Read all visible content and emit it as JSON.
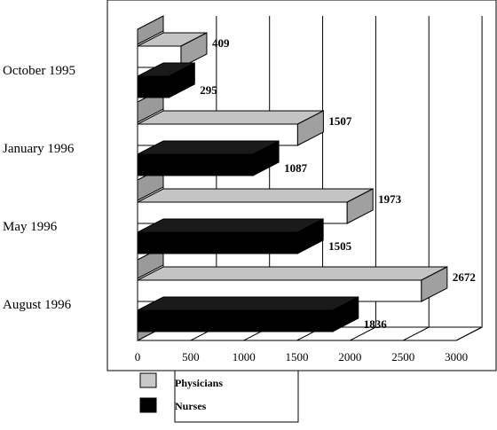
{
  "chart_data": {
    "type": "bar",
    "orientation": "horizontal",
    "style": "3d",
    "categories": [
      "October 1995",
      "January 1996",
      "May 1996",
      "August 1996"
    ],
    "series": [
      {
        "name": "Physicians",
        "values": [
          409,
          1507,
          1973,
          2672
        ],
        "color": "#ffffff",
        "side_color": "#a0a0a0",
        "top_color": "#c4c4c4"
      },
      {
        "name": "Nurses",
        "values": [
          295,
          1087,
          1505,
          1836
        ],
        "color": "#000000",
        "side_color": "#000000",
        "top_color": "#1a1a1a"
      }
    ],
    "value_labels": [
      [
        "409",
        "1507",
        "1973",
        "2672"
      ],
      [
        "295",
        "1087",
        "1505",
        "1836"
      ]
    ],
    "x_ticks": [
      "0",
      "500",
      "1000",
      "1500",
      "2000",
      "2500",
      "3000"
    ],
    "xlim": [
      0,
      3000
    ],
    "grid": true,
    "legend": {
      "position": "bottom",
      "entries": [
        "Physicians",
        "Nurses"
      ]
    }
  }
}
